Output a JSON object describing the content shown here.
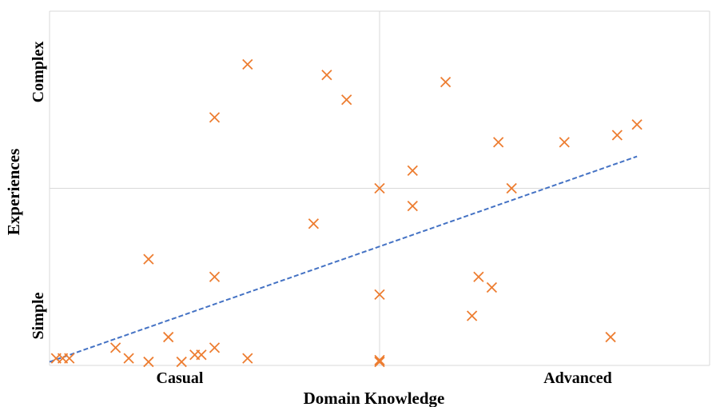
{
  "chart_data": {
    "type": "scatter",
    "xlabel": "Domain Knowledge",
    "ylabel": "Experiences",
    "x_tick_labels": [
      "Casual",
      "Advanced"
    ],
    "y_tick_labels": [
      "Simple",
      "Complex"
    ],
    "xlim": [
      0,
      10
    ],
    "ylim": [
      0,
      10
    ],
    "grid": true,
    "colors": {
      "points": "#ED7D31",
      "trendline": "#4472C4",
      "grid": "#D9D9D9"
    },
    "series": [
      {
        "marker": "x",
        "points": [
          [
            0.1,
            0.2
          ],
          [
            0.2,
            0.2
          ],
          [
            0.3,
            0.2
          ],
          [
            1.0,
            0.5
          ],
          [
            1.2,
            0.2
          ],
          [
            1.5,
            0.1
          ],
          [
            1.5,
            3.0
          ],
          [
            1.8,
            0.8
          ],
          [
            2.0,
            0.1
          ],
          [
            2.2,
            0.3
          ],
          [
            2.3,
            0.3
          ],
          [
            2.5,
            0.5
          ],
          [
            2.5,
            2.5
          ],
          [
            2.5,
            7.0
          ],
          [
            3.0,
            0.2
          ],
          [
            3.0,
            8.5
          ],
          [
            4.0,
            4.0
          ],
          [
            4.2,
            8.2
          ],
          [
            4.5,
            7.5
          ],
          [
            5.0,
            0.1
          ],
          [
            5.0,
            0.15
          ],
          [
            5.0,
            2.0
          ],
          [
            5.0,
            5.0
          ],
          [
            5.5,
            4.5
          ],
          [
            5.5,
            5.5
          ],
          [
            6.0,
            8.0
          ],
          [
            6.4,
            1.4
          ],
          [
            6.5,
            2.5
          ],
          [
            6.7,
            2.2
          ],
          [
            6.8,
            6.3
          ],
          [
            7.0,
            5.0
          ],
          [
            7.8,
            6.3
          ],
          [
            8.5,
            0.8
          ],
          [
            8.6,
            6.5
          ],
          [
            8.9,
            6.8
          ]
        ]
      }
    ],
    "trendline": {
      "style": "dashed",
      "x": [
        0,
        8.9
      ],
      "y": [
        0.1,
        5.9
      ]
    }
  }
}
